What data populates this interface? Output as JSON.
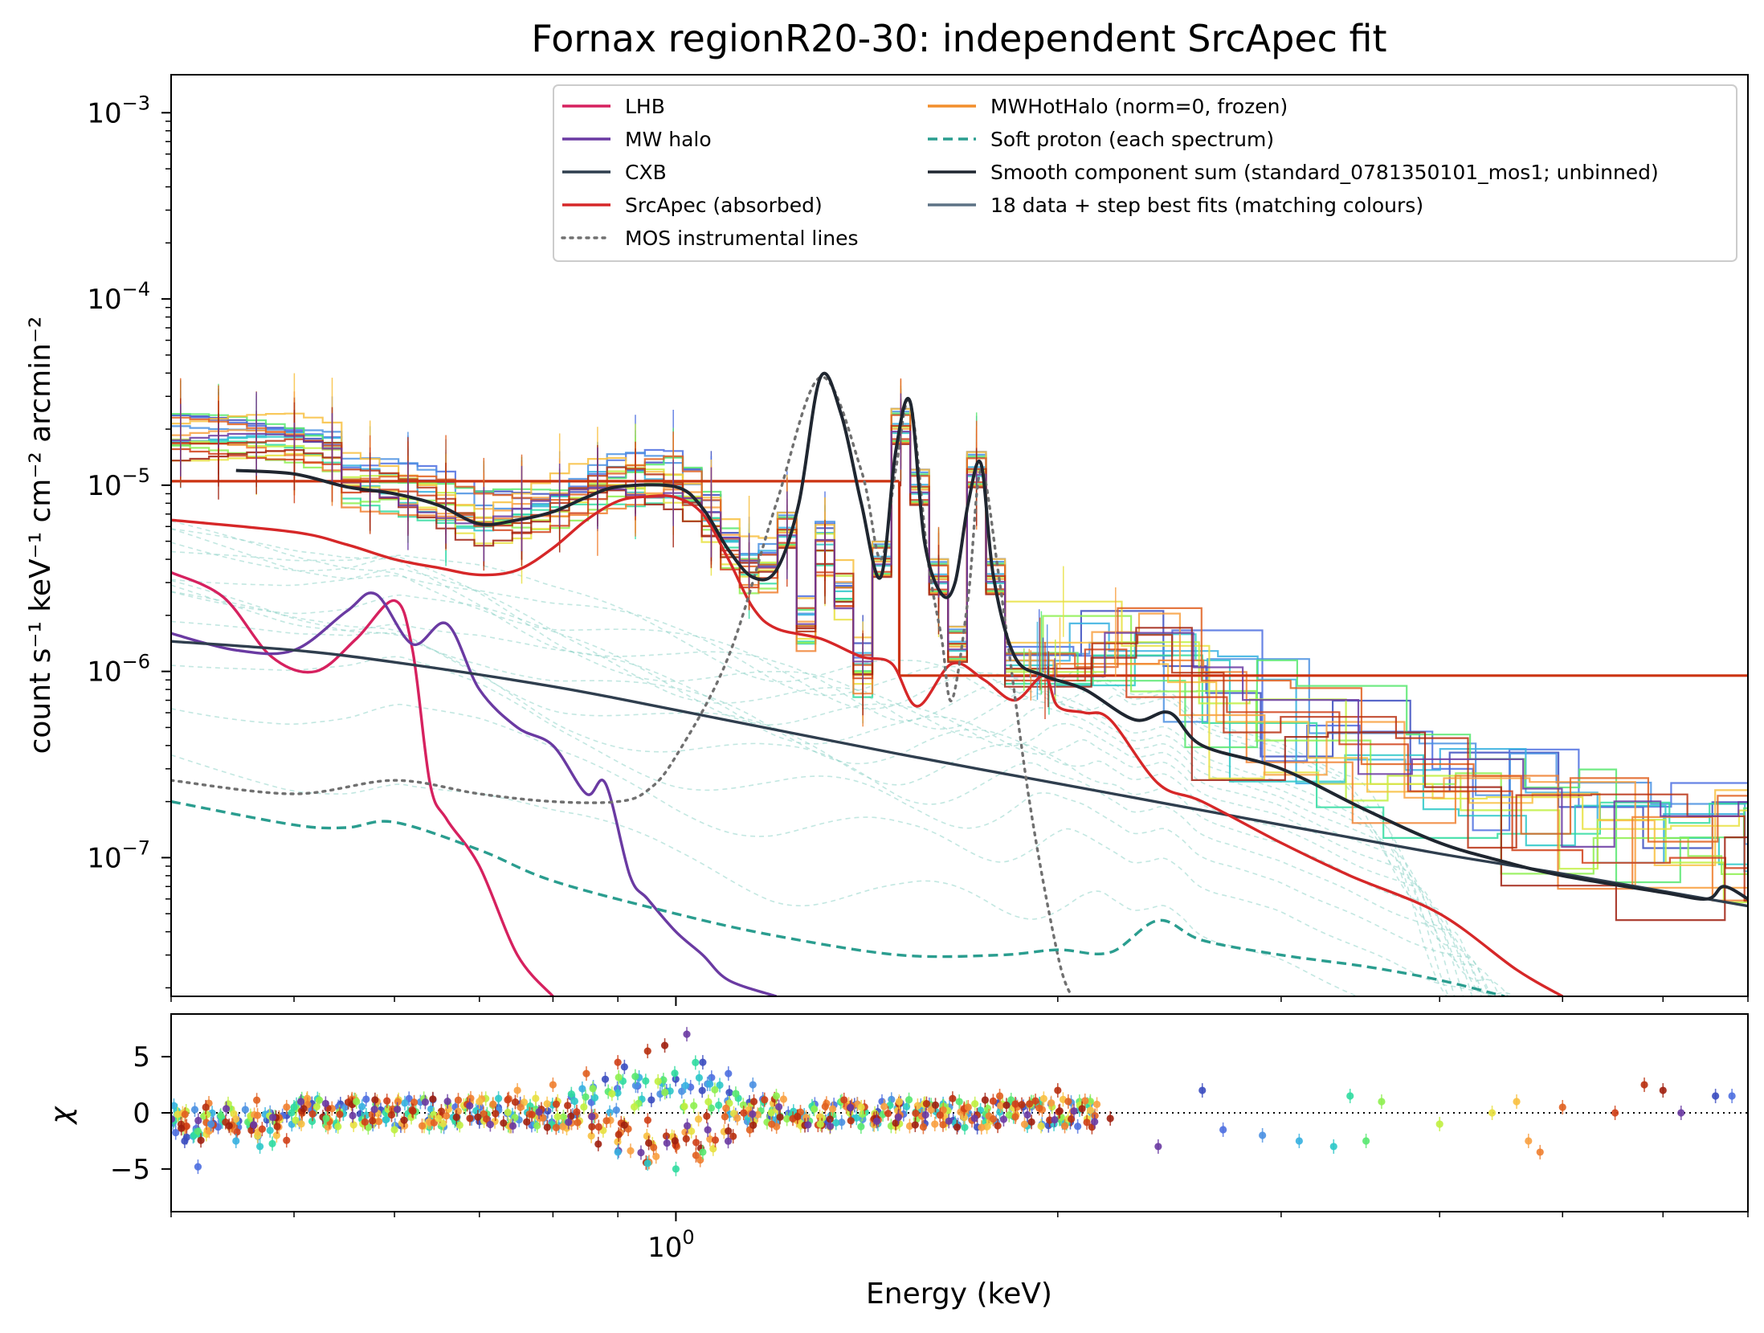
{
  "chart_data": [
    {
      "type": "line",
      "title": "Fornax regionR20-30: independent SrcApec fit",
      "xlabel": "",
      "ylabel": "count s⁻¹ keV⁻¹ cm⁻² arcmin⁻²",
      "xscale": "log",
      "yscale": "log",
      "xlim": [
        0.4,
        7.0
      ],
      "ylim": [
        1.8e-08,
        0.0016
      ],
      "yticks": [
        {
          "value": 1e-07,
          "base": "10",
          "exp": "−7"
        },
        {
          "value": 1e-06,
          "base": "10",
          "exp": "−6"
        },
        {
          "value": 1e-05,
          "base": "10",
          "exp": "−5"
        },
        {
          "value": 0.0001,
          "base": "10",
          "exp": "−4"
        },
        {
          "value": 0.001,
          "base": "10",
          "exp": "−3"
        }
      ],
      "legend": {
        "placement": "top-right",
        "columns": 2,
        "entries": [
          {
            "label": "LHB",
            "color": "#d6215f",
            "style": "solid"
          },
          {
            "label": "MW halo",
            "color": "#6a3aa2",
            "style": "solid"
          },
          {
            "label": "CXB",
            "color": "#2f3e4e",
            "style": "solid"
          },
          {
            "label": "SrcApec (absorbed)",
            "color": "#d62728",
            "style": "solid"
          },
          {
            "label": "MOS instrumental lines",
            "color": "#707070",
            "style": "dotted"
          },
          {
            "label": "MWHotHalo (norm=0, frozen)",
            "color": "#f28e2b",
            "style": "solid"
          },
          {
            "label": "Soft proton (each spectrum)",
            "color": "#2a9d8f",
            "style": "dashed"
          },
          {
            "label": "Smooth component sum (standard_0781350101_mos1; unbinned)",
            "color": "#1f2630",
            "style": "solid"
          },
          {
            "label": "18 data + step best fits (matching colours)",
            "color": "#5d7285",
            "style": "solid"
          }
        ]
      },
      "series": [
        {
          "name": "LHB",
          "color": "#d6215f",
          "style": "solid",
          "x": [
            0.4,
            0.44,
            0.48,
            0.52,
            0.56,
            0.6,
            0.62,
            0.64,
            0.66,
            0.7,
            0.75,
            0.8
          ],
          "y": [
            3.4e-06,
            2.5e-06,
            1.2e-06,
            1e-06,
            1.5e-06,
            2.4e-06,
            1.3e-06,
            2.5e-07,
            1.6e-07,
            9e-08,
            3e-08,
            1.8e-08
          ]
        },
        {
          "name": "MW halo",
          "color": "#6a3aa2",
          "style": "solid",
          "x": [
            0.4,
            0.45,
            0.5,
            0.55,
            0.58,
            0.62,
            0.66,
            0.7,
            0.75,
            0.8,
            0.85,
            0.88,
            0.92,
            0.95,
            1.0,
            1.05,
            1.1,
            1.2
          ],
          "y": [
            1.6e-06,
            1.3e-06,
            1.3e-06,
            2.1e-06,
            2.6e-06,
            1.4e-06,
            1.8e-06,
            8e-07,
            5e-07,
            4e-07,
            2.2e-07,
            2.5e-07,
            8e-08,
            6e-08,
            4e-08,
            3e-08,
            2.2e-08,
            1.8e-08
          ]
        },
        {
          "name": "CXB",
          "color": "#2f3e4e",
          "style": "solid",
          "x": [
            0.4,
            0.5,
            0.6,
            0.8,
            1.0,
            1.5,
            2.0,
            3.0,
            4.0,
            5.0,
            6.0,
            7.0
          ],
          "y": [
            1.45e-06,
            1.3e-06,
            1.12e-06,
            8.3e-07,
            6.2e-07,
            3.6e-07,
            2.5e-07,
            1.5e-07,
            1.05e-07,
            8.2e-08,
            6.6e-08,
            5.5e-08
          ]
        },
        {
          "name": "SrcApec (absorbed)",
          "color": "#d62728",
          "style": "solid",
          "x": [
            0.4,
            0.5,
            0.55,
            0.6,
            0.65,
            0.7,
            0.75,
            0.8,
            0.85,
            0.9,
            0.95,
            1.0,
            1.05,
            1.1,
            1.15,
            1.2,
            1.3,
            1.4,
            1.48,
            1.55,
            1.65,
            1.75,
            1.85,
            1.95,
            2.0,
            2.1,
            2.2,
            2.4,
            2.6,
            3.0,
            3.4,
            4.0,
            4.6,
            5.0
          ],
          "y": [
            6.5e-06,
            5.6e-06,
            4.8e-06,
            4e-06,
            3.6e-06,
            3.3e-06,
            3.5e-06,
            4.6e-06,
            6.5e-06,
            8.2e-06,
            8.7e-06,
            8.6e-06,
            7e-06,
            4e-06,
            2.2e-06,
            1.7e-06,
            1.5e-06,
            1.2e-06,
            1.1e-06,
            6.5e-07,
            1.1e-06,
            9e-07,
            7e-07,
            9.5e-07,
            6.5e-07,
            6e-07,
            5.5e-07,
            2.5e-07,
            2e-07,
            1.2e-07,
            8e-08,
            5e-08,
            2.5e-08,
            1.8e-08
          ]
        },
        {
          "name": "MOS instrumental lines",
          "color": "#707070",
          "style": "dotted",
          "x": [
            0.4,
            0.5,
            0.6,
            0.7,
            0.8,
            0.9,
            0.95,
            1.0,
            1.1,
            1.2,
            1.3,
            1.4,
            1.45,
            1.49,
            1.53,
            1.58,
            1.62,
            1.65,
            1.7,
            1.74,
            1.8,
            1.9,
            2.0,
            2.05
          ],
          "y": [
            2.6e-07,
            2.2e-07,
            2.6e-07,
            2.2e-07,
            2e-07,
            2e-07,
            2.3e-07,
            3.5e-07,
            1.2e-06,
            8e-06,
            3.8e-05,
            1.2e-05,
            4e-06,
            1.2e-05,
            2.8e-05,
            4e-06,
            1.5e-06,
            7e-07,
            2.5e-06,
            1.2e-05,
            3e-06,
            2e-07,
            3e-08,
            1.8e-08
          ]
        },
        {
          "name": "Soft proton (each spectrum)",
          "color": "#2a9d8f",
          "style": "dashed",
          "x": [
            0.4,
            0.5,
            0.55,
            0.6,
            0.7,
            0.8,
            1.0,
            1.2,
            1.5,
            1.8,
            2.0,
            2.2,
            2.4,
            2.6,
            3.0,
            3.5,
            4.0,
            4.5
          ],
          "y": [
            2e-07,
            1.5e-07,
            1.45e-07,
            1.55e-07,
            1.1e-07,
            7.5e-08,
            5e-08,
            3.8e-08,
            3e-08,
            3e-08,
            3.2e-08,
            3.1e-08,
            4.6e-08,
            3.6e-08,
            3e-08,
            2.6e-08,
            2.2e-08,
            1.8e-08
          ]
        },
        {
          "name": "Smooth component sum (standard_0781350101_mos1; unbinned)",
          "color": "#1f2630",
          "style": "solid",
          "x": [
            0.45,
            0.5,
            0.55,
            0.6,
            0.65,
            0.7,
            0.75,
            0.8,
            0.85,
            0.9,
            1.0,
            1.05,
            1.1,
            1.15,
            1.2,
            1.25,
            1.3,
            1.35,
            1.4,
            1.45,
            1.49,
            1.53,
            1.57,
            1.62,
            1.66,
            1.7,
            1.74,
            1.78,
            1.85,
            1.95,
            2.1,
            2.3,
            2.45,
            2.6,
            3.0,
            3.5,
            4.0,
            4.5,
            5.0,
            6.0,
            6.5,
            6.7,
            7.0
          ],
          "y": [
            1.2e-05,
            1.15e-05,
            9.8e-06,
            9e-06,
            7.8e-06,
            6.2e-06,
            6.5e-06,
            7.2e-06,
            8.6e-06,
            9.8e-06,
            9.8e-06,
            7.5e-06,
            4.5e-06,
            3.2e-06,
            3.5e-06,
            8e-06,
            3.8e-05,
            2.4e-05,
            8e-06,
            3.2e-06,
            1.5e-05,
            2.8e-05,
            5e-06,
            2.6e-06,
            3e-06,
            8e-06,
            1.3e-05,
            3.2e-06,
            1.2e-06,
            9.5e-07,
            8e-07,
            5.5e-07,
            6e-07,
            4e-07,
            3e-07,
            1.8e-07,
            1.2e-07,
            9.5e-08,
            8e-08,
            6.5e-08,
            6e-08,
            7e-08,
            6e-08
          ]
        }
      ]
    },
    {
      "type": "scatter",
      "title": "",
      "xlabel": "Energy (keV)",
      "ylabel": "χ",
      "xscale": "log",
      "xlim": [
        0.4,
        7.0
      ],
      "ylim": [
        -8.8,
        8.8
      ],
      "yticks": [
        {
          "value": 5,
          "label": "5"
        },
        {
          "value": 0,
          "label": "0"
        },
        {
          "value": -5,
          "label": "−5"
        }
      ],
      "xticks": [
        {
          "value": 1.0,
          "base": "10",
          "exp": "0"
        }
      ],
      "reference_line": {
        "y": 0,
        "style": "dotted",
        "color": "#000000"
      },
      "n_spectra": 18,
      "points": [
        {
          "x": 0.41,
          "y": -2.5
        },
        {
          "x": 0.42,
          "y": -4.8
        },
        {
          "x": 0.43,
          "y": -1.0
        },
        {
          "x": 0.45,
          "y": -2.5
        },
        {
          "x": 0.47,
          "y": -3.0
        },
        {
          "x": 0.5,
          "y": 0.5
        },
        {
          "x": 0.53,
          "y": -0.5
        },
        {
          "x": 0.56,
          "y": 1.0
        },
        {
          "x": 0.6,
          "y": -1.5
        },
        {
          "x": 0.65,
          "y": -0.5
        },
        {
          "x": 0.7,
          "y": 1.0
        },
        {
          "x": 0.75,
          "y": 2.0
        },
        {
          "x": 0.8,
          "y": 2.5
        },
        {
          "x": 0.85,
          "y": 3.5
        },
        {
          "x": 0.9,
          "y": 4.5
        },
        {
          "x": 0.95,
          "y": 5.5
        },
        {
          "x": 0.98,
          "y": 6.0
        },
        {
          "x": 1.02,
          "y": 7.0
        },
        {
          "x": 1.05,
          "y": 4.5
        },
        {
          "x": 1.1,
          "y": 3.5
        },
        {
          "x": 1.15,
          "y": 2.5
        },
        {
          "x": 0.9,
          "y": -3.5
        },
        {
          "x": 0.95,
          "y": -4.5
        },
        {
          "x": 1.0,
          "y": -5.0
        },
        {
          "x": 1.05,
          "y": -3.5
        },
        {
          "x": 1.2,
          "y": 1.5
        },
        {
          "x": 1.3,
          "y": -1.0
        },
        {
          "x": 1.4,
          "y": 0.5
        },
        {
          "x": 1.5,
          "y": 1.0
        },
        {
          "x": 1.6,
          "y": -1.0
        },
        {
          "x": 1.7,
          "y": 0.5
        },
        {
          "x": 1.8,
          "y": 1.5
        },
        {
          "x": 1.9,
          "y": 0.8
        },
        {
          "x": 2.0,
          "y": 2.0
        },
        {
          "x": 2.2,
          "y": -0.5
        },
        {
          "x": 2.4,
          "y": -3.0
        },
        {
          "x": 2.6,
          "y": 2.0
        },
        {
          "x": 2.7,
          "y": -1.5
        },
        {
          "x": 2.9,
          "y": -2.0
        },
        {
          "x": 3.1,
          "y": -2.5
        },
        {
          "x": 3.3,
          "y": -3.0
        },
        {
          "x": 3.4,
          "y": 1.5
        },
        {
          "x": 3.5,
          "y": -2.5
        },
        {
          "x": 3.6,
          "y": 1.0
        },
        {
          "x": 4.0,
          "y": -1.0
        },
        {
          "x": 4.4,
          "y": 0.0
        },
        {
          "x": 4.6,
          "y": 1.0
        },
        {
          "x": 4.7,
          "y": -2.5
        },
        {
          "x": 4.8,
          "y": -3.5
        },
        {
          "x": 5.0,
          "y": 0.5
        },
        {
          "x": 5.5,
          "y": 0.0
        },
        {
          "x": 5.8,
          "y": 2.5
        },
        {
          "x": 6.0,
          "y": 2.0
        },
        {
          "x": 6.2,
          "y": 0.0
        },
        {
          "x": 6.6,
          "y": 1.5
        },
        {
          "x": 6.8,
          "y": 1.5
        }
      ]
    }
  ]
}
